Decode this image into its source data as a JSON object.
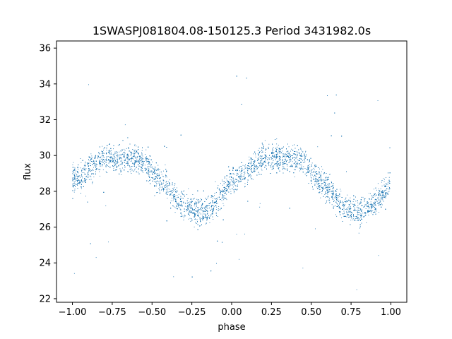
{
  "chart_data": {
    "type": "scatter",
    "title": "1SWASPJ081804.08-150125.3 Period 3431982.0s",
    "xlabel": "phase",
    "ylabel": "flux",
    "xlim": [
      -1.1,
      1.1
    ],
    "ylim": [
      21.8,
      36.4
    ],
    "xticks": [
      -1.0,
      -0.75,
      -0.5,
      -0.25,
      0.0,
      0.25,
      0.5,
      0.75,
      1.0
    ],
    "xtick_labels": [
      "−1.00",
      "−0.75",
      "−0.50",
      "−0.25",
      "0.00",
      "0.25",
      "0.50",
      "0.75",
      "1.00"
    ],
    "yticks": [
      22,
      24,
      26,
      28,
      30,
      32,
      34,
      36
    ],
    "ytick_labels": [
      "22",
      "24",
      "26",
      "28",
      "30",
      "32",
      "34",
      "36"
    ],
    "grid": false,
    "marker_color": "#1f77b4",
    "series": [
      {
        "trend_phase": [
          -1.0,
          -0.95,
          -0.9,
          -0.85,
          -0.8,
          -0.75,
          -0.7,
          -0.65,
          -0.6,
          -0.55,
          -0.5,
          -0.45,
          -0.4,
          -0.35,
          -0.3,
          -0.25,
          -0.2,
          -0.15,
          -0.1,
          -0.05,
          0.0,
          0.05,
          0.1,
          0.15,
          0.2,
          0.25,
          0.3,
          0.35,
          0.4,
          0.45,
          0.5,
          0.55,
          0.6,
          0.65,
          0.7,
          0.75,
          0.8,
          0.85,
          0.9,
          0.95,
          1.0
        ],
        "trend_flux": [
          28.6,
          28.8,
          29.2,
          29.6,
          29.9,
          29.9,
          29.8,
          29.8,
          29.8,
          29.7,
          29.1,
          28.6,
          28.2,
          27.6,
          27.1,
          27.0,
          26.9,
          27.0,
          27.4,
          28.0,
          28.6,
          28.8,
          29.2,
          29.6,
          29.9,
          29.9,
          29.8,
          29.8,
          29.8,
          29.7,
          29.1,
          28.6,
          28.2,
          27.6,
          27.1,
          27.0,
          26.9,
          27.0,
          27.4,
          28.0,
          28.6
        ],
        "scatter_half_width": 1.4,
        "point_count": 9000
      }
    ]
  }
}
